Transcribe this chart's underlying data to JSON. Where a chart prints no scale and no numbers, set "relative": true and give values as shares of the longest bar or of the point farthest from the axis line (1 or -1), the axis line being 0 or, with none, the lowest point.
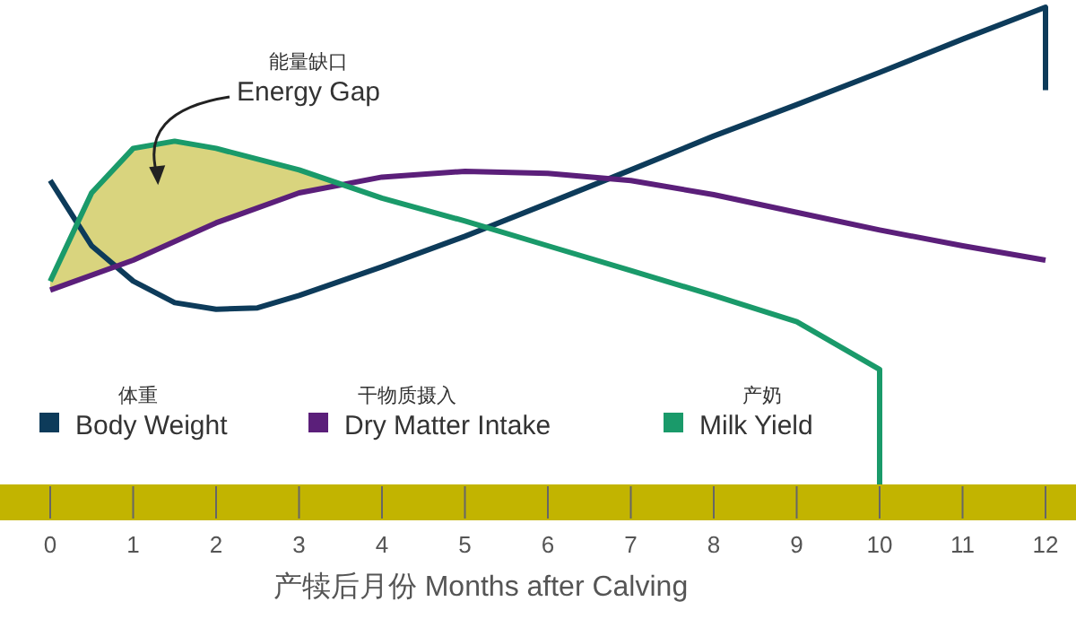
{
  "chart_data": {
    "type": "line",
    "relative": true,
    "xlabel": "产犊后月份 Months after Calving",
    "xlim": [
      0,
      12
    ],
    "xticks": [
      0,
      1,
      2,
      3,
      4,
      5,
      6,
      7,
      8,
      9,
      10,
      11,
      12
    ],
    "legend": "bottom",
    "annotations": [
      "能量缺口\nEnergy Gap"
    ],
    "series": [
      {
        "name": "体重\nBody Weight",
        "color": "#0d3b5a",
        "x": [
          0,
          0.5,
          1,
          1.5,
          2,
          2.5,
          3,
          4,
          5,
          6,
          7,
          8,
          9,
          10,
          11,
          12,
          12
        ],
        "values": [
          0.637,
          0.5,
          0.426,
          0.381,
          0.367,
          0.37,
          0.396,
          0.456,
          0.52,
          0.589,
          0.659,
          0.73,
          0.796,
          0.863,
          0.933,
          1,
          0.826
        ]
      },
      {
        "name": "干物质摄入\nDry Matter Intake",
        "color": "#5b1f7a",
        "x": [
          0,
          1,
          2,
          3,
          4,
          5,
          6,
          7,
          8,
          9,
          10,
          11,
          12
        ],
        "values": [
          0.407,
          0.47,
          0.548,
          0.611,
          0.644,
          0.656,
          0.652,
          0.637,
          0.607,
          0.57,
          0.533,
          0.5,
          0.47
        ]
      },
      {
        "name": "产奶\nMilk Yield",
        "color": "#1a9a6a",
        "x": [
          0,
          0.5,
          1,
          1.5,
          2,
          3,
          4,
          5,
          6,
          7,
          8,
          9,
          10,
          10
        ],
        "values": [
          0.426,
          0.611,
          0.704,
          0.719,
          0.704,
          0.659,
          0.6,
          0.552,
          0.5,
          0.448,
          0.396,
          0.341,
          0.241,
          0
        ]
      }
    ]
  }
}
